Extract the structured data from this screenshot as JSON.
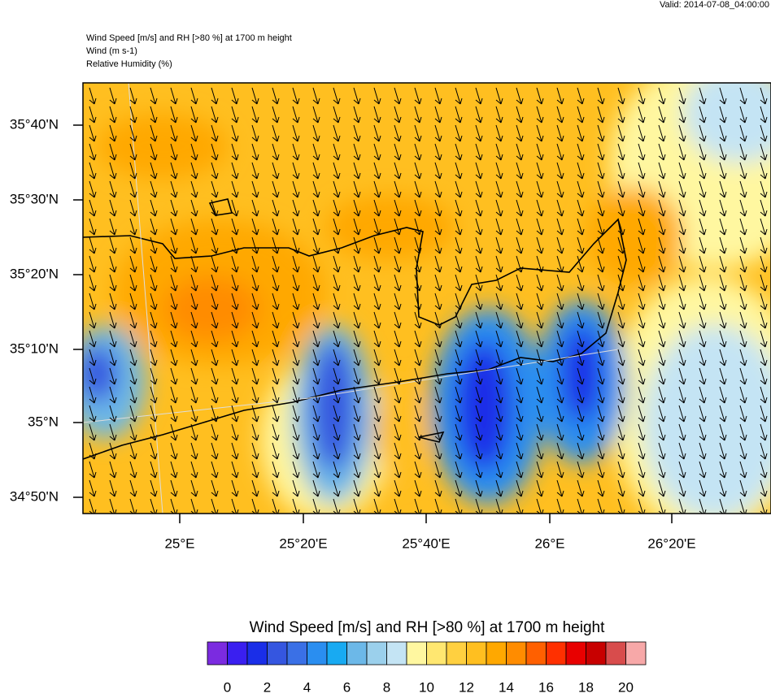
{
  "valid": "Valid: 2014-07-08_04:00:00",
  "header": {
    "lines": [
      "Wind Speed [m/s] and RH [>80 %] at 1700 m height",
      "Wind   (m s-1)",
      "Relative Humidity   (%)"
    ]
  },
  "map": {
    "lat_labels": [
      "35°40'N",
      "35°30'N",
      "35°20'N",
      "35°10'N",
      "35°N",
      "34°50'N"
    ],
    "lon_labels": [
      "25°E",
      "25°20'E",
      "25°40'E",
      "26°E",
      "26°20'E"
    ]
  },
  "colorbar": {
    "title": "Wind Speed [m/s] and RH [>80 %] at 1700 m height",
    "colors": [
      "#7b2be0",
      "#3a1ff0",
      "#1a2ee8",
      "#3556e0",
      "#3a70e6",
      "#2a8ef0",
      "#18aaf2",
      "#6cb8e8",
      "#9bd0ec",
      "#c4e4f4",
      "#fff7a0",
      "#ffe770",
      "#ffd040",
      "#ffbf20",
      "#ffa800",
      "#ff8c00",
      "#ff6000",
      "#ff3000",
      "#e80000",
      "#c80000",
      "#d84c4c",
      "#f7a8a8"
    ],
    "labels": [
      0,
      2,
      4,
      6,
      8,
      10,
      12,
      14,
      16,
      18,
      20
    ]
  }
}
